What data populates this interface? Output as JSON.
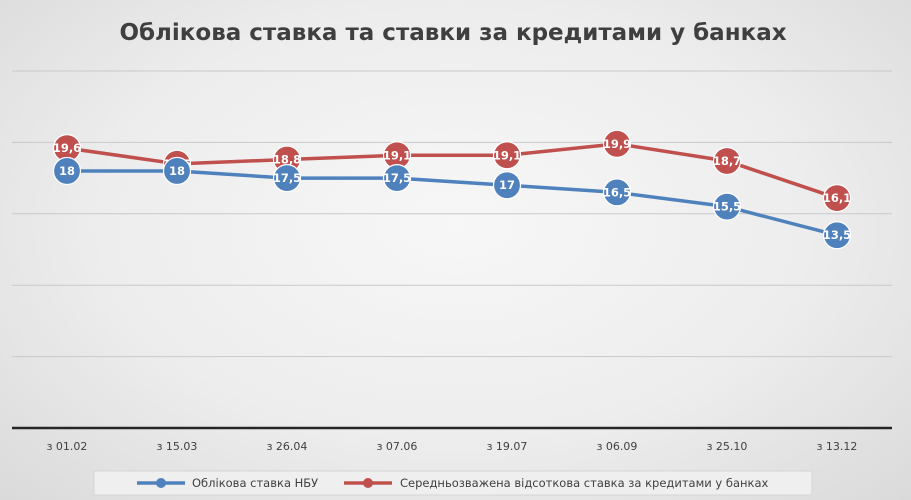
{
  "chart_data": {
    "type": "line",
    "title": "Облікова ставка та ставки за кредитами у банках",
    "categories": [
      "з 01.02",
      "з 15.03",
      "з 26.04",
      "з 07.06",
      "з 19.07",
      "з 06.09",
      "з 25.10",
      "з 13.12"
    ],
    "series": [
      {
        "name": "Облікова ставка НБУ",
        "color": "#4f81bd",
        "values": [
          18,
          18,
          17.5,
          17.5,
          17,
          16.5,
          15.5,
          13.5
        ],
        "labels": [
          "18",
          "18",
          "17,5",
          "17,5",
          "17",
          "16,5",
          "15,5",
          "13,5"
        ]
      },
      {
        "name": "Середньозважена відсоткова ставка за кредитами у банках",
        "color": "#c0504d",
        "values": [
          19.6,
          18.5,
          18.8,
          19.1,
          19.1,
          19.9,
          18.7,
          16.1
        ],
        "labels": [
          "19,6",
          "18,5",
          "18,8",
          "19,1",
          "19,1",
          "19,9",
          "18,7",
          "16,1"
        ]
      }
    ],
    "ylim": [
      0,
      25
    ],
    "y_ticks_labeled": false,
    "grid": true,
    "legend_position": "bottom"
  }
}
